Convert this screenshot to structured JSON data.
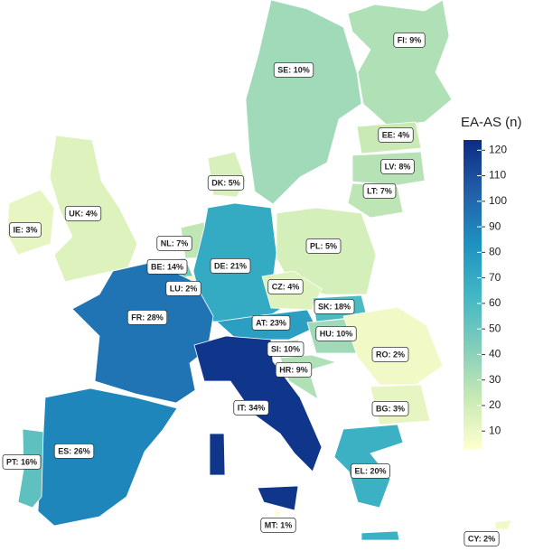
{
  "legend": {
    "title": "EA-AS (n)",
    "ylim": [
      3,
      124
    ],
    "yticks": [
      10,
      20,
      30,
      40,
      50,
      60,
      70,
      80,
      90,
      100,
      110,
      120
    ],
    "colors": [
      "#ffffcc",
      "#c7e9b4",
      "#7fcdbb",
      "#41b6c4",
      "#1d91c0",
      "#225ea8",
      "#0c2c84"
    ]
  },
  "regions": [
    {
      "label": "FI: 9%",
      "value": 30
    },
    {
      "label": "SE: 10%",
      "value": 34
    },
    {
      "label": "EE: 4%",
      "value": 22
    },
    {
      "label": "LV: 8%",
      "value": 28
    },
    {
      "label": "LT: 7%",
      "value": 26
    },
    {
      "label": "DK: 5%",
      "value": 17
    },
    {
      "label": "IE: 3%",
      "value": 12
    },
    {
      "label": "UK: 4%",
      "value": 15
    },
    {
      "label": "NL: 7%",
      "value": 25
    },
    {
      "label": "BE: 14%",
      "value": 46
    },
    {
      "label": "LU: 2%",
      "value": 8
    },
    {
      "label": "DE: 21%",
      "value": 70
    },
    {
      "label": "PL: 5%",
      "value": 18
    },
    {
      "label": "CZ: 4%",
      "value": 15
    },
    {
      "label": "SK: 18%",
      "value": 60
    },
    {
      "label": "AT: 23%",
      "value": 76
    },
    {
      "label": "HU: 10%",
      "value": 34
    },
    {
      "label": "SI: 10%",
      "value": 34
    },
    {
      "label": "HR: 9%",
      "value": 30
    },
    {
      "label": "RO: 2%",
      "value": 8
    },
    {
      "label": "BG: 3%",
      "value": 12
    },
    {
      "label": "FR: 28%",
      "value": 95
    },
    {
      "label": "IT: 34%",
      "value": 120
    },
    {
      "label": "ES: 26%",
      "value": 88
    },
    {
      "label": "PT: 16%",
      "value": 54
    },
    {
      "label": "EL: 20%",
      "value": 66
    },
    {
      "label": "MT: 1%",
      "value": 4
    },
    {
      "label": "CY: 2%",
      "value": 8
    }
  ]
}
